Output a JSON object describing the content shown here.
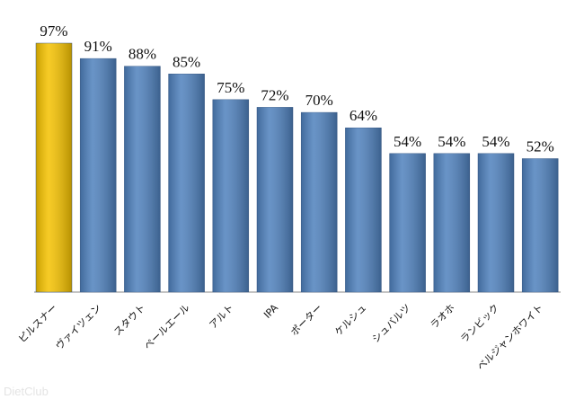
{
  "chart_data": {
    "type": "bar",
    "categories": [
      "ピルスナー",
      "ヴァイツェン",
      "スタウト",
      "ペールエール",
      "アルト",
      "IPA",
      "ポーター",
      "ケルシュ",
      "シュバルツ",
      "ラオホ",
      "ランビック",
      "ベルジャンホワイト"
    ],
    "values": [
      97,
      91,
      88,
      85,
      75,
      72,
      70,
      64,
      54,
      54,
      54,
      52
    ],
    "value_labels": [
      "97%",
      "91%",
      "88%",
      "85%",
      "75%",
      "72%",
      "70%",
      "64%",
      "54%",
      "54%",
      "54%",
      "52%"
    ],
    "colors": [
      "#f5c200",
      "#4f81bd",
      "#4f81bd",
      "#4f81bd",
      "#4f81bd",
      "#4f81bd",
      "#4f81bd",
      "#4f81bd",
      "#4f81bd",
      "#4f81bd",
      "#4f81bd",
      "#4f81bd"
    ]
  },
  "watermark": "DietClub"
}
